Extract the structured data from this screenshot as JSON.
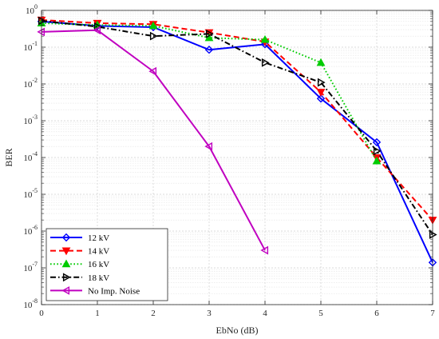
{
  "chart_data": {
    "type": "line",
    "xlabel": "EbNo (dB)",
    "ylabel": "BER",
    "x_ticks": [
      "0",
      "1",
      "2",
      "3",
      "4",
      "5",
      "6",
      "7"
    ],
    "y_ticks": [
      {
        "base": "10",
        "exp": "0"
      },
      {
        "base": "10",
        "exp": "-1"
      },
      {
        "base": "10",
        "exp": "-2"
      },
      {
        "base": "10",
        "exp": "-3"
      },
      {
        "base": "10",
        "exp": "-4"
      },
      {
        "base": "10",
        "exp": "-5"
      },
      {
        "base": "10",
        "exp": "-6"
      },
      {
        "base": "10",
        "exp": "-7"
      },
      {
        "base": "10",
        "exp": "-8"
      }
    ],
    "xlim": [
      0,
      7
    ],
    "ylim": [
      1e-08,
      1
    ],
    "yscale": "log",
    "grid": "major and minor",
    "legend_position": "bottom-left",
    "series": [
      {
        "name": "12 kV",
        "color": "#0000ff",
        "dash": "solid",
        "marker": "diamond",
        "x": [
          0,
          1,
          2,
          3,
          4,
          5,
          6,
          7
        ],
        "y": [
          0.5,
          0.38,
          0.35,
          0.085,
          0.12,
          0.004,
          0.00026,
          1.4e-07
        ]
      },
      {
        "name": "14 kV",
        "color": "#ff0000",
        "dash": "dashed",
        "marker": "triangle-down",
        "x": [
          0,
          1,
          2,
          3,
          4,
          5,
          6,
          7
        ],
        "y": [
          0.55,
          0.45,
          0.42,
          0.25,
          0.14,
          0.006,
          0.0001,
          2e-06
        ]
      },
      {
        "name": "16 kV",
        "color": "#00cc00",
        "dash": "dotted",
        "marker": "triangle-up",
        "x": [
          0,
          1,
          2,
          3,
          4,
          5,
          6
        ],
        "y": [
          0.45,
          0.4,
          0.38,
          0.18,
          0.16,
          0.038,
          8e-05
        ]
      },
      {
        "name": "18 kV",
        "color": "#000000",
        "dash": "dashdot",
        "marker": "triangle-right",
        "x": [
          0,
          1,
          2,
          3,
          4,
          5,
          6,
          7
        ],
        "y": [
          0.52,
          0.36,
          0.2,
          0.23,
          0.038,
          0.011,
          0.00015,
          8e-07
        ]
      },
      {
        "name": "No Imp. Noise",
        "color": "#c000c0",
        "dash": "solid",
        "marker": "triangle-left",
        "x": [
          0,
          1,
          2,
          3,
          4
        ],
        "y": [
          0.26,
          0.29,
          0.022,
          0.0002,
          3e-07
        ]
      }
    ]
  }
}
